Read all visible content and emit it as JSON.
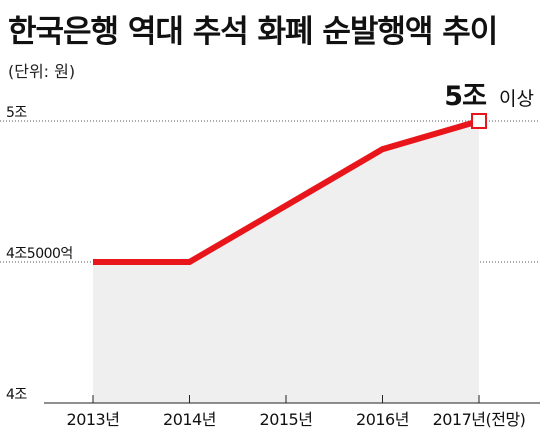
{
  "title": "한국은행 역대 추석 화폐 순발행액 추이",
  "unit": "(단위: 원)",
  "colors": {
    "line": "#e8161b",
    "fill": "#efefef",
    "grid": "#555555",
    "text": "#111111"
  },
  "annotation": {
    "value": "5조",
    "suffix": "이상"
  },
  "chart_data": {
    "type": "line",
    "title": "한국은행 역대 추석 화폐 순발행액 추이",
    "xlabel": "",
    "ylabel": "(단위: 원)",
    "categories": [
      "2013년",
      "2014년",
      "2015년",
      "2016년",
      "2017년(전망)"
    ],
    "series": [
      {
        "values": [
          4.5,
          4.5,
          4.7,
          4.9,
          5.0
        ]
      }
    ],
    "ylim": [
      4.0,
      5.0
    ],
    "yticks": [
      {
        "value": 5.0,
        "label": "5조"
      },
      {
        "value": 4.5,
        "label": "4조5000억"
      },
      {
        "value": 4.0,
        "label": "4조"
      }
    ],
    "grid": "dotted horizontal",
    "area_fill": true,
    "annotations": [
      {
        "category": "2017년(전망)",
        "text": "5조 이상"
      }
    ]
  }
}
